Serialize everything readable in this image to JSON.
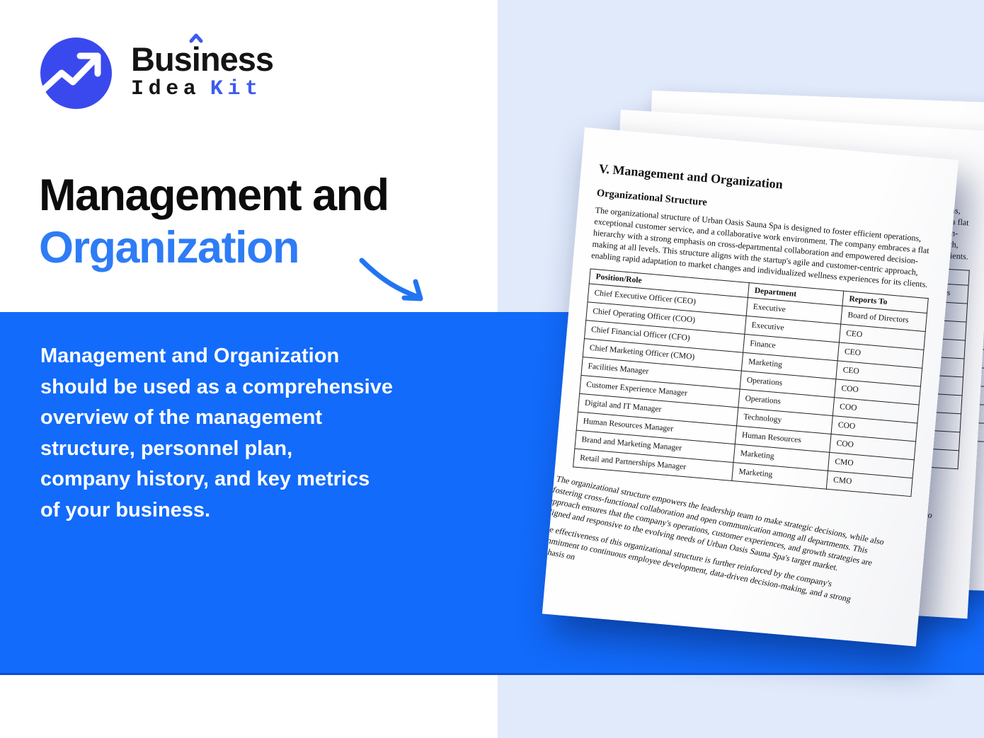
{
  "colors": {
    "band_blue": "#126bfb",
    "heading_blue": "#2e7cf6",
    "logo_blue": "#3a49ee",
    "kit_blue": "#3d5bef",
    "panel_light_blue": "#e0eafb",
    "arrow_blue": "#2374f2"
  },
  "logo": {
    "brand_pre": "Bus",
    "brand_i": "i",
    "brand_post": "ness",
    "sub_word1": "Idea",
    "sub_word2": "Kit"
  },
  "hero": {
    "title_line1": "Management and",
    "title_line2": "Organization",
    "description": "Management and Organization\nshould be used as a comprehensive\noverview of the management\nstructure, personnel plan,\ncompany history, and key metrics\nof your business."
  },
  "document": {
    "title": "V. Management and Organization",
    "section_heading": "Organizational Structure",
    "intro_paragraph": "The organizational structure of Urban Oasis Sauna Spa is designed to foster efficient operations, exceptional customer service, and a collaborative work environment. The company embraces a flat hierarchy with a strong emphasis on cross-departmental collaboration and empowered decision-making at all levels. This structure aligns with the startup's agile and customer-centric approach, enabling rapid adaptation to market changes and individualized wellness experiences for its clients.",
    "table": {
      "headers": [
        "Position/Role",
        "Department",
        "Reports To"
      ],
      "rows": [
        [
          "Chief Executive Officer (CEO)",
          "Executive",
          "Board of Directors"
        ],
        [
          "Chief Operating Officer (COO)",
          "Executive",
          "CEO"
        ],
        [
          "Chief Financial Officer (CFO)",
          "Finance",
          "CEO"
        ],
        [
          "Chief Marketing Officer (CMO)",
          "Marketing",
          "CEO"
        ],
        [
          "Facilities Manager",
          "Operations",
          "COO"
        ],
        [
          "Customer Experience Manager",
          "Operations",
          "COO"
        ],
        [
          "Digital and IT Manager",
          "Technology",
          "COO"
        ],
        [
          "Human Resources Manager",
          "Human Resources",
          "COO"
        ],
        [
          "Brand and Marketing Manager",
          "Marketing",
          "CMO"
        ],
        [
          "Retail and Partnerships Manager",
          "Marketing",
          "CMO"
        ]
      ]
    },
    "closing_paragraph_1": "The organizational structure empowers the leadership team to make strategic decisions, while also fostering cross-functional collaboration and open communication among all departments. This approach ensures that the company's operations, customer experiences, and growth strategies are aligned and responsive to the evolving needs of Urban Oasis Sauna Spa's target market.",
    "closing_paragraph_2": "The effectiveness of this organizational structure is further reinforced by the company's commitment to continuous employee development, data-driven decision-making, and a strong emphasis on"
  }
}
